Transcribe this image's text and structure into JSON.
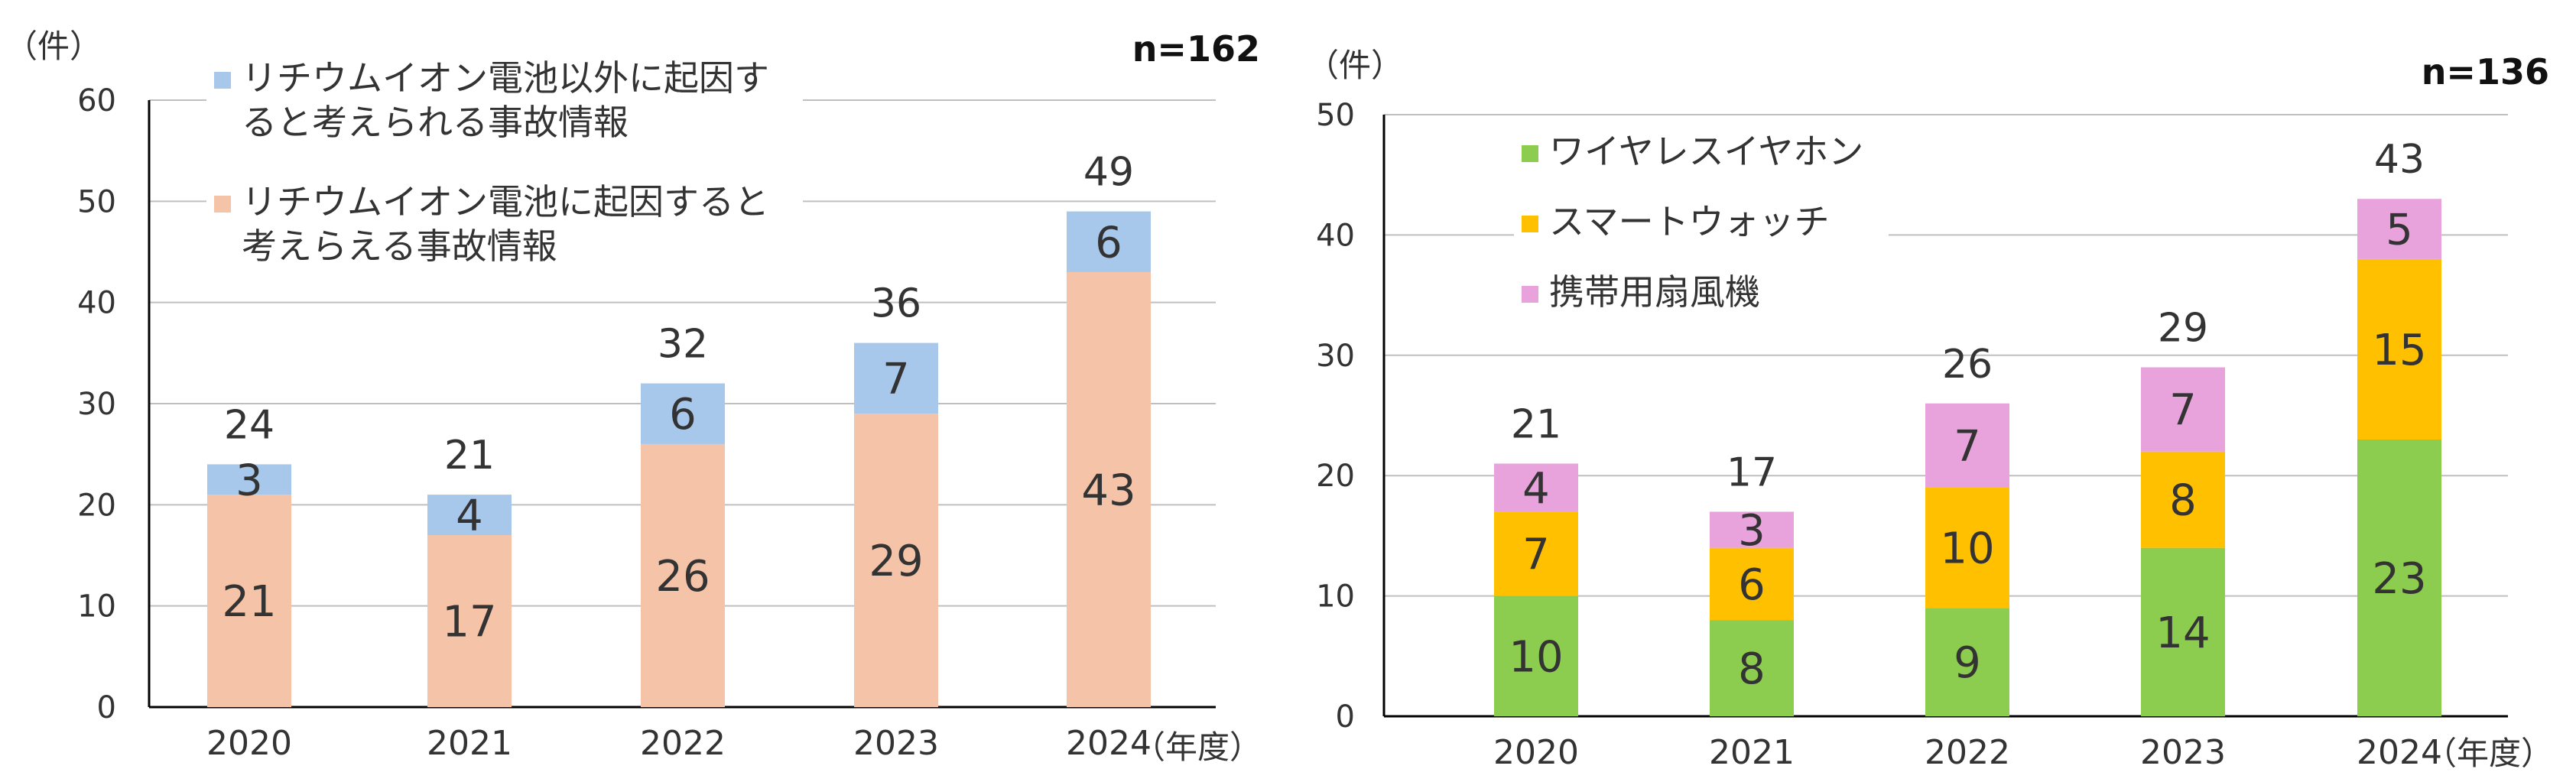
{
  "chart_data": [
    {
      "type": "bar",
      "stacked": true,
      "unit_label": "（件）",
      "n_label": "n=162",
      "xlabel": "（年度）",
      "ylim": [
        0,
        60
      ],
      "yticks": [
        0,
        10,
        20,
        30,
        40,
        50,
        60
      ],
      "categories": [
        "2020",
        "2021",
        "2022",
        "2023",
        "2024"
      ],
      "totals": [
        24,
        21,
        32,
        36,
        49
      ],
      "legend": "top-left",
      "series": [
        {
          "name": "リチウムイオン電池に起因すると考えらえる事故情報",
          "name_lines": [
            "リチウムイオン電池に起因すると",
            "考えらえる事故情報"
          ],
          "color": "#f5c4a8",
          "values": [
            21,
            17,
            26,
            29,
            43
          ]
        },
        {
          "name": "リチウムイオン電池以外に起因すると考えられる事故情報",
          "name_lines": [
            "リチウムイオン電池以外に起因す",
            "ると考えられる事故情報"
          ],
          "color": "#a7c8ea",
          "values": [
            3,
            4,
            6,
            7,
            6
          ]
        }
      ]
    },
    {
      "type": "bar",
      "stacked": true,
      "unit_label": "（件）",
      "n_label": "n=136",
      "xlabel": "（年度）",
      "ylim": [
        0,
        50
      ],
      "yticks": [
        0,
        10,
        20,
        30,
        40,
        50
      ],
      "categories": [
        "2020",
        "2021",
        "2022",
        "2023",
        "2024"
      ],
      "totals": [
        21,
        17,
        26,
        29,
        43
      ],
      "legend": "top-left",
      "series": [
        {
          "name": "ワイヤレスイヤホン",
          "name_lines": [
            "ワイヤレスイヤホン"
          ],
          "color": "#8ccc4e",
          "values": [
            10,
            8,
            9,
            14,
            23
          ]
        },
        {
          "name": "スマートウォッチ",
          "name_lines": [
            "スマートウォッチ"
          ],
          "color": "#ffc000",
          "values": [
            7,
            6,
            10,
            8,
            15
          ]
        },
        {
          "name": "携帯用扇風機",
          "name_lines": [
            "携帯用扇風機"
          ],
          "color": "#e8a3dc",
          "values": [
            4,
            3,
            7,
            7,
            5
          ]
        }
      ]
    }
  ]
}
